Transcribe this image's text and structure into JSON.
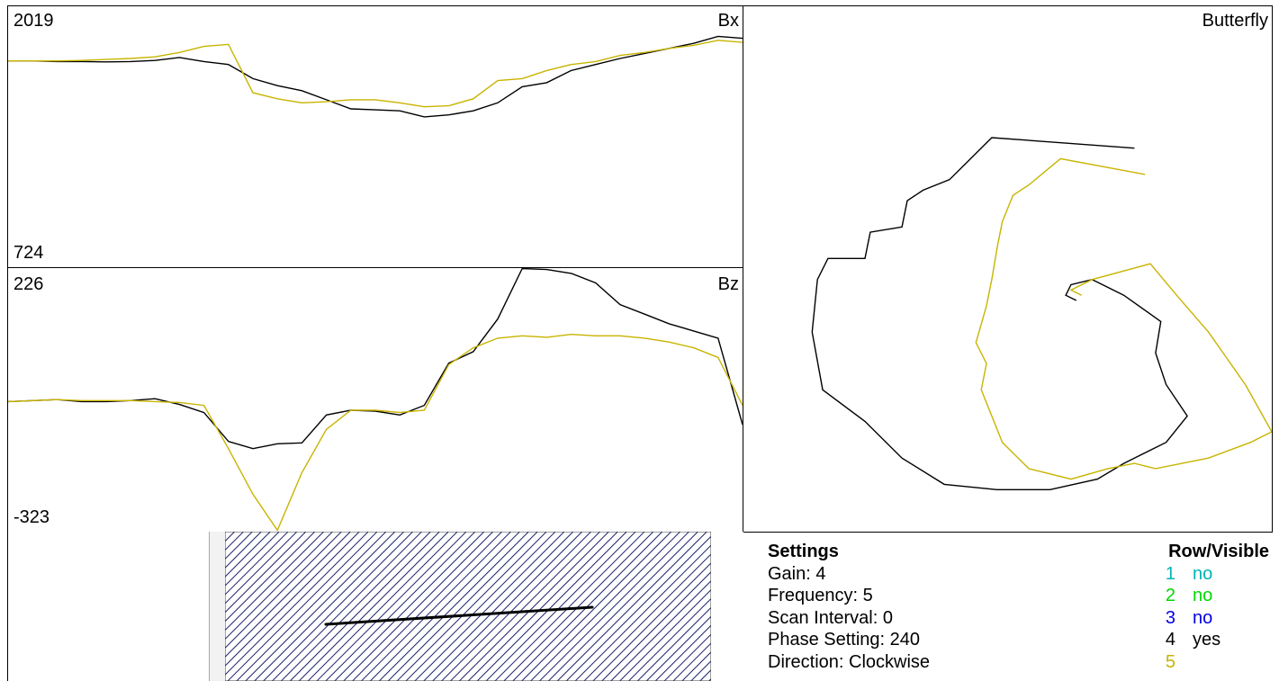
{
  "panels": {
    "bx": {
      "name": "Bx",
      "max_label": "2019",
      "min_label": "724",
      "ymin": 724,
      "ymax": 2019
    },
    "bz": {
      "name": "Bz",
      "max_label": "226",
      "min_label": "-323",
      "ymin": -323,
      "ymax": 226
    },
    "butterfly": {
      "name": "Butterfly"
    }
  },
  "colors": {
    "series_black": "#000000",
    "series_yellow": "#c8b400",
    "grid": "#000000",
    "hatch_fill": "#1a1f6b",
    "hatch_bg": "#ffffff"
  },
  "chart_data": [
    {
      "type": "line",
      "title": "Bx",
      "ylim": [
        724,
        2019
      ],
      "series": [
        {
          "values": [
            1748,
            1748,
            1745,
            1745,
            1743,
            1745,
            1750,
            1765,
            1745,
            1730,
            1660,
            1625,
            1600,
            1555,
            1510,
            1505,
            1500,
            1470,
            1480,
            1500,
            1540,
            1620,
            1640,
            1700,
            1730,
            1760,
            1785,
            1810,
            1835,
            1870,
            1860
          ]
        },
        {
          "values": [
            1748,
            1748,
            1748,
            1750,
            1755,
            1760,
            1768,
            1790,
            1820,
            1830,
            1590,
            1560,
            1540,
            1545,
            1555,
            1555,
            1540,
            1520,
            1525,
            1560,
            1650,
            1660,
            1700,
            1730,
            1745,
            1775,
            1790,
            1810,
            1825,
            1850,
            1840
          ]
        }
      ]
    },
    {
      "type": "line",
      "title": "Bz",
      "ylim": [
        -323,
        226
      ],
      "series": [
        {
          "values": [
            -52,
            -50,
            -48,
            -52,
            -52,
            -50,
            -46,
            -58,
            -75,
            -135,
            -150,
            -140,
            -138,
            -80,
            -70,
            -72,
            -80,
            -60,
            28,
            52,
            120,
            225,
            223,
            215,
            195,
            150,
            130,
            110,
            95,
            80,
            -100
          ]
        },
        {
          "values": [
            -52,
            -50,
            -48,
            -50,
            -50,
            -50,
            -52,
            -54,
            -60,
            -150,
            -245,
            -320,
            -200,
            -110,
            -70,
            -70,
            -75,
            -70,
            25,
            60,
            80,
            85,
            82,
            88,
            85,
            85,
            80,
            72,
            60,
            40,
            -60
          ]
        }
      ]
    },
    {
      "type": "scatter",
      "title": "Butterfly",
      "series": [
        {
          "points": [
            [
              0.74,
              0.27
            ],
            [
              0.47,
              0.25
            ],
            [
              0.42,
              0.3
            ],
            [
              0.39,
              0.33
            ],
            [
              0.34,
              0.35
            ],
            [
              0.31,
              0.37
            ],
            [
              0.3,
              0.42
            ],
            [
              0.24,
              0.43
            ],
            [
              0.23,
              0.48
            ],
            [
              0.16,
              0.48
            ],
            [
              0.14,
              0.52
            ],
            [
              0.13,
              0.62
            ],
            [
              0.15,
              0.73
            ],
            [
              0.23,
              0.79
            ],
            [
              0.3,
              0.86
            ],
            [
              0.38,
              0.91
            ],
            [
              0.48,
              0.92
            ],
            [
              0.58,
              0.92
            ],
            [
              0.67,
              0.9
            ],
            [
              0.72,
              0.87
            ],
            [
              0.8,
              0.83
            ],
            [
              0.84,
              0.78
            ],
            [
              0.8,
              0.72
            ],
            [
              0.78,
              0.66
            ],
            [
              0.79,
              0.6
            ],
            [
              0.72,
              0.55
            ],
            [
              0.66,
              0.52
            ],
            [
              0.62,
              0.53
            ],
            [
              0.61,
              0.55
            ],
            [
              0.63,
              0.56
            ]
          ]
        },
        {
          "points": [
            [
              0.76,
              0.32
            ],
            [
              0.6,
              0.29
            ],
            [
              0.54,
              0.34
            ],
            [
              0.51,
              0.36
            ],
            [
              0.49,
              0.41
            ],
            [
              0.48,
              0.46
            ],
            [
              0.47,
              0.52
            ],
            [
              0.46,
              0.57
            ],
            [
              0.44,
              0.64
            ],
            [
              0.46,
              0.68
            ],
            [
              0.45,
              0.73
            ],
            [
              0.49,
              0.83
            ],
            [
              0.54,
              0.88
            ],
            [
              0.62,
              0.9
            ],
            [
              0.69,
              0.88
            ],
            [
              0.74,
              0.87
            ],
            [
              0.78,
              0.88
            ],
            [
              0.88,
              0.86
            ],
            [
              0.96,
              0.83
            ],
            [
              1.0,
              0.81
            ],
            [
              0.95,
              0.72
            ],
            [
              0.88,
              0.62
            ],
            [
              0.82,
              0.55
            ],
            [
              0.77,
              0.49
            ],
            [
              0.66,
              0.52
            ],
            [
              0.62,
              0.54
            ],
            [
              0.64,
              0.55
            ]
          ]
        }
      ]
    }
  ],
  "bottom_left": {
    "hatch": true
  },
  "settings": {
    "title": "Settings",
    "items": [
      "Gain: 4",
      "Frequency: 5",
      "Scan Interval: 0",
      "Phase Setting: 240",
      "Direction: Clockwise"
    ]
  },
  "row_visible": {
    "title": "Row/Visible",
    "rows": [
      {
        "num": "1",
        "visible": "no",
        "color": "#00b4b4"
      },
      {
        "num": "2",
        "visible": "no",
        "color": "#00d800"
      },
      {
        "num": "3",
        "visible": "no",
        "color": "#0000e0"
      },
      {
        "num": "4",
        "visible": "yes",
        "color": "#000000"
      },
      {
        "num": "5",
        "visible": "",
        "color": "#c8b400"
      }
    ]
  }
}
